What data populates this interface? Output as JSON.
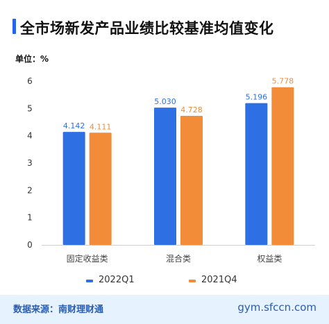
{
  "title": "全市场新发产品业绩比较基准均值变化",
  "unit_label": "单位：%",
  "colors": {
    "accent": "#2563eb",
    "series_2022Q1": "#2f6fe4",
    "series_2021Q4": "#f28c38",
    "footer_bg": "#e7f2ff",
    "footer_text": "#2a5db0"
  },
  "chart_data": {
    "type": "bar",
    "title": "全市场新发产品业绩比较基准均值变化",
    "xlabel": "",
    "ylabel": "单位：%",
    "ylim": [
      0,
      6
    ],
    "yticks": [
      0,
      1,
      2,
      3,
      4,
      5,
      6
    ],
    "grid": false,
    "legend_position": "bottom",
    "categories": [
      "固定收益类",
      "混合类",
      "权益类"
    ],
    "series": [
      {
        "name": "2022Q1",
        "values": [
          4.142,
          5.03,
          5.196
        ],
        "labels": [
          "4.142",
          "5.030",
          "5.196"
        ],
        "color": "#2f6fe4"
      },
      {
        "name": "2021Q4",
        "values": [
          4.111,
          4.728,
          5.778
        ],
        "labels": [
          "4.111",
          "4.728",
          "5.778"
        ],
        "color": "#f28c38"
      }
    ]
  },
  "footer": {
    "source": "数据来源：南财理财通",
    "site": "gym.sfccn.com"
  }
}
